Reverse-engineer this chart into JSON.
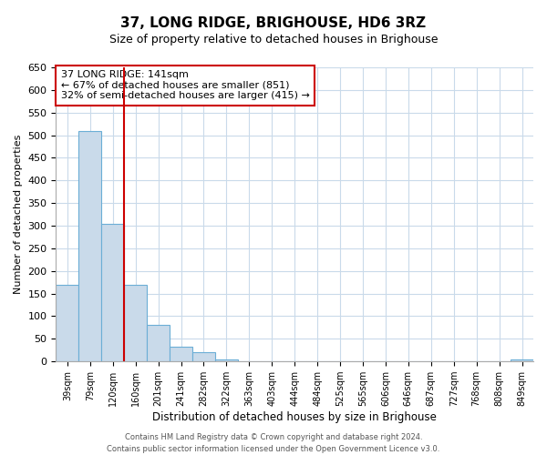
{
  "title": "37, LONG RIDGE, BRIGHOUSE, HD6 3RZ",
  "subtitle": "Size of property relative to detached houses in Brighouse",
  "xlabel": "Distribution of detached houses by size in Brighouse",
  "ylabel": "Number of detached properties",
  "bar_labels": [
    "39sqm",
    "79sqm",
    "120sqm",
    "160sqm",
    "201sqm",
    "241sqm",
    "282sqm",
    "322sqm",
    "363sqm",
    "403sqm",
    "444sqm",
    "484sqm",
    "525sqm",
    "565sqm",
    "606sqm",
    "646sqm",
    "687sqm",
    "727sqm",
    "768sqm",
    "808sqm",
    "849sqm"
  ],
  "bar_values": [
    170,
    510,
    305,
    170,
    80,
    33,
    20,
    5,
    0,
    0,
    0,
    0,
    0,
    0,
    0,
    0,
    0,
    0,
    0,
    0,
    5
  ],
  "bar_color": "#c9daea",
  "bar_edge_color": "#6baed6",
  "grid_color": "#c9daea",
  "vline_x": 2.5,
  "vline_color": "#cc0000",
  "annotation_text": "37 LONG RIDGE: 141sqm\n← 67% of detached houses are smaller (851)\n32% of semi-detached houses are larger (415) →",
  "annotation_box_color": "#ffffff",
  "annotation_box_edge": "#cc0000",
  "ylim": [
    0,
    650
  ],
  "yticks": [
    0,
    50,
    100,
    150,
    200,
    250,
    300,
    350,
    400,
    450,
    500,
    550,
    600,
    650
  ],
  "footer": "Contains HM Land Registry data © Crown copyright and database right 2024.\nContains public sector information licensed under the Open Government Licence v3.0.",
  "background_color": "#ffffff"
}
